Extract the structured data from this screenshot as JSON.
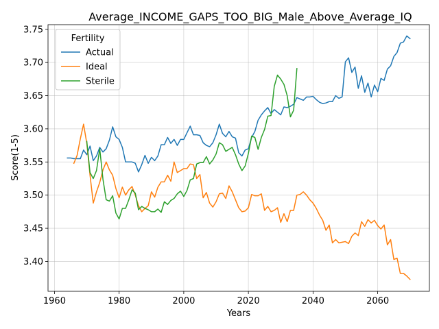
{
  "chart_data": {
    "type": "line",
    "title": "Average_INCOME_GAPS_TOO_BIG_Male_Above_Average_IQ",
    "xlabel": "Years",
    "ylabel": "Score(1-5)",
    "xlim": [
      1958,
      2076
    ],
    "ylim": [
      3.355,
      3.757
    ],
    "xticks": [
      1960,
      1980,
      2000,
      2020,
      2040,
      2060
    ],
    "yticks": [
      3.4,
      3.45,
      3.5,
      3.55,
      3.6,
      3.65,
      3.7,
      3.75
    ],
    "ytick_labels": [
      "3.40",
      "3.45",
      "3.50",
      "3.55",
      "3.60",
      "3.65",
      "3.70",
      "3.75"
    ],
    "grid": true,
    "legend": {
      "title": "Fertility",
      "position": "top-left"
    },
    "series": [
      {
        "name": "Actual",
        "color": "#1f77b4",
        "x": [
          1964,
          1965,
          1966,
          1967,
          1968,
          1969,
          1970,
          1971,
          1972,
          1973,
          1974,
          1975,
          1976,
          1977,
          1978,
          1979,
          1980,
          1981,
          1982,
          1983,
          1984,
          1985,
          1986,
          1987,
          1988,
          1989,
          1990,
          1991,
          1992,
          1993,
          1994,
          1995,
          1996,
          1997,
          1998,
          1999,
          2000,
          2001,
          2002,
          2003,
          2004,
          2005,
          2006,
          2007,
          2008,
          2009,
          2010,
          2011,
          2012,
          2013,
          2014,
          2015,
          2016,
          2017,
          2018,
          2019,
          2020,
          2021,
          2022,
          2023,
          2024,
          2025,
          2026,
          2027,
          2028,
          2029,
          2030,
          2031,
          2032,
          2033,
          2034,
          2035,
          2036,
          2037,
          2038,
          2039,
          2040,
          2041,
          2042,
          2043,
          2044,
          2045,
          2046,
          2047,
          2048,
          2049,
          2050,
          2051,
          2052,
          2053,
          2054,
          2055,
          2056,
          2057,
          2058,
          2059,
          2060,
          2061,
          2062,
          2063,
          2064,
          2065,
          2066,
          2067,
          2068,
          2069,
          2070
        ],
        "y": [
          3.556,
          3.556,
          3.555,
          3.555,
          3.555,
          3.568,
          3.561,
          3.574,
          3.552,
          3.559,
          3.572,
          3.565,
          3.57,
          3.583,
          3.603,
          3.588,
          3.584,
          3.572,
          3.55,
          3.55,
          3.55,
          3.548,
          3.535,
          3.546,
          3.56,
          3.548,
          3.557,
          3.552,
          3.559,
          3.576,
          3.576,
          3.587,
          3.578,
          3.584,
          3.575,
          3.584,
          3.584,
          3.594,
          3.604,
          3.591,
          3.591,
          3.59,
          3.579,
          3.575,
          3.573,
          3.579,
          3.591,
          3.607,
          3.593,
          3.588,
          3.596,
          3.588,
          3.586,
          3.564,
          3.559,
          3.568,
          3.57,
          3.587,
          3.596,
          3.613,
          3.621,
          3.627,
          3.632,
          3.623,
          3.629,
          3.625,
          3.621,
          3.633,
          3.632,
          3.634,
          3.637,
          3.647,
          3.645,
          3.643,
          3.648,
          3.648,
          3.649,
          3.644,
          3.64,
          3.638,
          3.639,
          3.641,
          3.641,
          3.65,
          3.646,
          3.648,
          3.701,
          3.707,
          3.685,
          3.693,
          3.661,
          3.68,
          3.655,
          3.669,
          3.648,
          3.666,
          3.656,
          3.676,
          3.673,
          3.69,
          3.695,
          3.709,
          3.715,
          3.729,
          3.731,
          3.74,
          3.736
        ]
      },
      {
        "name": "Ideal",
        "color": "#ff7f0e",
        "x": [
          1966,
          1967,
          1968,
          1969,
          1970,
          1971,
          1972,
          1973,
          1974,
          1975,
          1976,
          1977,
          1978,
          1979,
          1980,
          1981,
          1982,
          1983,
          1984,
          1985,
          1986,
          1987,
          1988,
          1989,
          1990,
          1991,
          1992,
          1993,
          1994,
          1995,
          1996,
          1997,
          1998,
          1999,
          2000,
          2001,
          2002,
          2003,
          2004,
          2005,
          2006,
          2007,
          2008,
          2009,
          2010,
          2011,
          2012,
          2013,
          2014,
          2015,
          2016,
          2017,
          2018,
          2019,
          2020,
          2021,
          2022,
          2023,
          2024,
          2025,
          2026,
          2027,
          2028,
          2029,
          2030,
          2031,
          2032,
          2033,
          2034,
          2035,
          2036,
          2037,
          2038,
          2039,
          2040,
          2041,
          2042,
          2043,
          2044,
          2045,
          2046,
          2047,
          2048,
          2049,
          2050,
          2051,
          2052,
          2053,
          2054,
          2055,
          2056,
          2057,
          2058,
          2059,
          2060,
          2061,
          2062,
          2063,
          2064,
          2065,
          2066,
          2067,
          2068,
          2069,
          2070
        ],
        "y": [
          3.548,
          3.56,
          3.585,
          3.607,
          3.578,
          3.53,
          3.488,
          3.505,
          3.519,
          3.538,
          3.55,
          3.538,
          3.53,
          3.51,
          3.496,
          3.512,
          3.5,
          3.508,
          3.513,
          3.5,
          3.484,
          3.475,
          3.48,
          3.484,
          3.505,
          3.497,
          3.512,
          3.52,
          3.52,
          3.53,
          3.521,
          3.55,
          3.534,
          3.537,
          3.54,
          3.54,
          3.547,
          3.546,
          3.525,
          3.531,
          3.496,
          3.504,
          3.488,
          3.482,
          3.49,
          3.502,
          3.503,
          3.495,
          3.514,
          3.505,
          3.493,
          3.481,
          3.475,
          3.476,
          3.481,
          3.501,
          3.499,
          3.499,
          3.502,
          3.477,
          3.483,
          3.475,
          3.477,
          3.481,
          3.459,
          3.472,
          3.46,
          3.477,
          3.477,
          3.5,
          3.501,
          3.505,
          3.5,
          3.493,
          3.488,
          3.48,
          3.47,
          3.462,
          3.447,
          3.455,
          3.428,
          3.433,
          3.428,
          3.429,
          3.43,
          3.427,
          3.438,
          3.443,
          3.439,
          3.46,
          3.453,
          3.463,
          3.458,
          3.462,
          3.454,
          3.449,
          3.455,
          3.425,
          3.433,
          3.403,
          3.405,
          3.382,
          3.382,
          3.378,
          3.373
        ]
      },
      {
        "name": "Sterile",
        "color": "#2ca02c",
        "x": [
          1970,
          1971,
          1972,
          1973,
          1974,
          1975,
          1976,
          1977,
          1978,
          1979,
          1980,
          1981,
          1982,
          1983,
          1984,
          1985,
          1986,
          1987,
          1988,
          1989,
          1990,
          1991,
          1992,
          1993,
          1994,
          1995,
          1996,
          1997,
          1998,
          1999,
          2000,
          2001,
          2002,
          2003,
          2004,
          2005,
          2006,
          2007,
          2008,
          2009,
          2010,
          2011,
          2012,
          2013,
          2014,
          2015,
          2016,
          2017,
          2018,
          2019,
          2020,
          2021,
          2022,
          2023,
          2024,
          2025,
          2026,
          2027,
          2028,
          2029,
          2030,
          2031,
          2032,
          2033,
          2034,
          2035
        ],
        "y": [
          3.581,
          3.534,
          3.525,
          3.537,
          3.57,
          3.524,
          3.493,
          3.491,
          3.499,
          3.473,
          3.464,
          3.48,
          3.48,
          3.493,
          3.508,
          3.503,
          3.478,
          3.483,
          3.48,
          3.478,
          3.475,
          3.475,
          3.479,
          3.474,
          3.49,
          3.486,
          3.492,
          3.495,
          3.502,
          3.506,
          3.498,
          3.507,
          3.523,
          3.525,
          3.547,
          3.549,
          3.549,
          3.558,
          3.547,
          3.553,
          3.562,
          3.579,
          3.576,
          3.566,
          3.569,
          3.572,
          3.561,
          3.547,
          3.537,
          3.544,
          3.563,
          3.589,
          3.587,
          3.569,
          3.587,
          3.599,
          3.619,
          3.62,
          3.664,
          3.681,
          3.675,
          3.667,
          3.65,
          3.618,
          3.628,
          3.691
        ]
      }
    ]
  }
}
